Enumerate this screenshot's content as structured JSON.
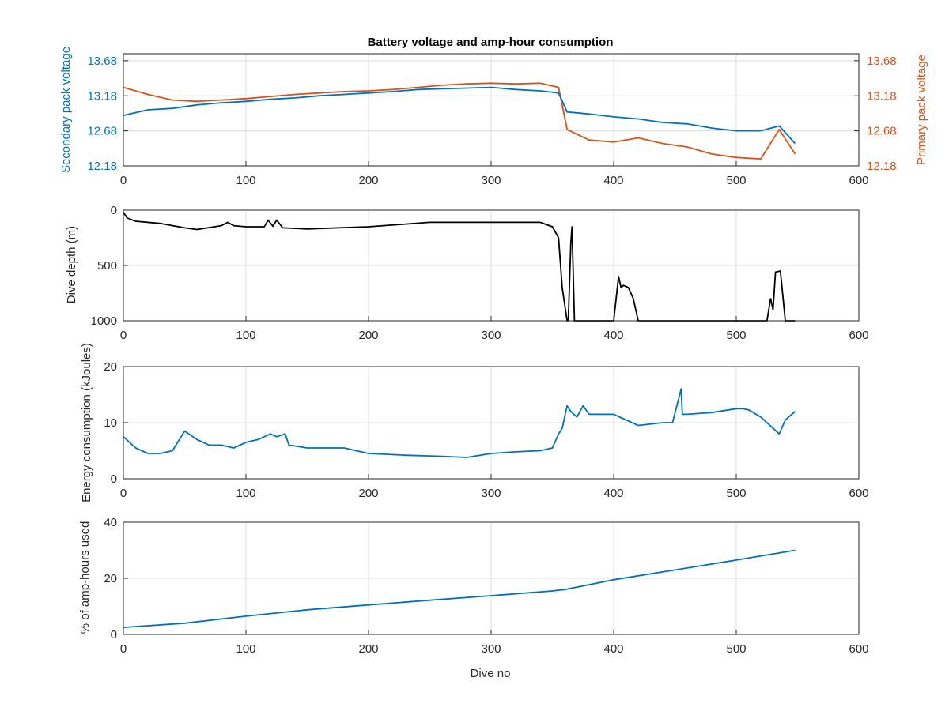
{
  "chart_data": [
    {
      "type": "line",
      "title": "Battery voltage and amp-hour consumption",
      "xlabel": "",
      "ylabel": "Secondary pack voltage",
      "y2label": "Primary pack voltage",
      "xlim": [
        0,
        600
      ],
      "ylim": [
        12.18,
        13.78
      ],
      "y2lim": [
        12.18,
        13.78
      ],
      "xticks": [
        "0",
        "100",
        "200",
        "300",
        "400",
        "500",
        "600"
      ],
      "yticks": [
        "12.18",
        "12.68",
        "13.18",
        "13.68"
      ],
      "y2ticks": [
        "12.18",
        "12.68",
        "13.18",
        "13.68"
      ],
      "grid": true,
      "colors": {
        "left_axis": "#0072BD",
        "right_axis": "#D95319"
      },
      "series": [
        {
          "axis": "left",
          "color": "#0072BD",
          "x": [
            0,
            20,
            40,
            60,
            80,
            100,
            120,
            140,
            160,
            180,
            200,
            220,
            240,
            260,
            280,
            300,
            320,
            340,
            355,
            362,
            380,
            400,
            420,
            440,
            460,
            480,
            500,
            520,
            535,
            548
          ],
          "y": [
            12.9,
            12.98,
            13.0,
            13.05,
            13.08,
            13.1,
            13.13,
            13.15,
            13.18,
            13.2,
            13.22,
            13.24,
            13.27,
            13.28,
            13.29,
            13.3,
            13.27,
            13.25,
            13.22,
            12.95,
            12.92,
            12.88,
            12.85,
            12.8,
            12.78,
            12.72,
            12.68,
            12.68,
            12.75,
            12.5
          ]
        },
        {
          "axis": "right",
          "color": "#D95319",
          "x": [
            0,
            20,
            40,
            60,
            80,
            100,
            120,
            140,
            160,
            180,
            200,
            220,
            240,
            260,
            280,
            300,
            320,
            340,
            355,
            362,
            380,
            400,
            420,
            440,
            460,
            480,
            500,
            520,
            535,
            548
          ],
          "y": [
            13.3,
            13.2,
            13.12,
            13.1,
            13.12,
            13.14,
            13.17,
            13.2,
            13.22,
            13.24,
            13.25,
            13.27,
            13.3,
            13.33,
            13.35,
            13.36,
            13.35,
            13.36,
            13.3,
            12.7,
            12.55,
            12.52,
            12.58,
            12.5,
            12.45,
            12.35,
            12.3,
            12.28,
            12.7,
            12.35
          ]
        }
      ]
    },
    {
      "type": "line",
      "title": "",
      "xlabel": "",
      "ylabel": "Dive depth (m)",
      "xlim": [
        0,
        600
      ],
      "ylim": [
        1000,
        0
      ],
      "xticks": [
        "0",
        "100",
        "200",
        "300",
        "400",
        "500",
        "600"
      ],
      "yticks": [
        "0",
        "500",
        "1000"
      ],
      "grid": true,
      "series": [
        {
          "color": "#000000",
          "x": [
            0,
            3,
            10,
            30,
            50,
            60,
            80,
            85,
            90,
            100,
            115,
            118,
            122,
            125,
            130,
            150,
            200,
            250,
            300,
            340,
            350,
            355,
            358,
            362,
            363,
            365,
            366,
            368,
            370,
            372,
            380,
            400,
            404,
            406,
            408,
            412,
            416,
            420,
            450,
            500,
            525,
            528,
            530,
            532,
            536,
            540,
            548
          ],
          "y": [
            20,
            70,
            100,
            120,
            160,
            175,
            140,
            110,
            140,
            150,
            150,
            90,
            145,
            90,
            160,
            170,
            150,
            110,
            110,
            110,
            150,
            250,
            700,
            1000,
            1000,
            300,
            150,
            1000,
            1000,
            1000,
            1000,
            1000,
            600,
            700,
            680,
            700,
            800,
            1000,
            1000,
            1000,
            1000,
            800,
            900,
            560,
            550,
            1000,
            1000
          ]
        }
      ]
    },
    {
      "type": "line",
      "title": "",
      "xlabel": "",
      "ylabel": "Energy consumption (kJoules)",
      "xlim": [
        0,
        600
      ],
      "ylim": [
        0,
        20
      ],
      "xticks": [
        "0",
        "100",
        "200",
        "300",
        "400",
        "500",
        "600"
      ],
      "yticks": [
        "0",
        "10",
        "20"
      ],
      "grid": true,
      "series": [
        {
          "color": "#0072BD",
          "x": [
            0,
            5,
            10,
            20,
            30,
            40,
            50,
            60,
            70,
            80,
            90,
            100,
            110,
            120,
            125,
            132,
            135,
            150,
            180,
            200,
            230,
            260,
            280,
            300,
            320,
            340,
            350,
            355,
            358,
            362,
            365,
            370,
            375,
            380,
            400,
            420,
            440,
            448,
            455,
            456,
            460,
            480,
            500,
            505,
            510,
            520,
            530,
            535,
            540,
            548
          ],
          "y": [
            7.5,
            6.5,
            5.5,
            4.5,
            4.5,
            5.0,
            8.5,
            7.0,
            6.0,
            6.0,
            5.5,
            6.5,
            7.0,
            8.0,
            7.5,
            8.0,
            6.0,
            5.5,
            5.5,
            4.5,
            4.2,
            4.0,
            3.8,
            4.5,
            4.8,
            5.0,
            5.5,
            8.0,
            9.0,
            13.0,
            12.0,
            11.0,
            13.0,
            11.5,
            11.5,
            9.5,
            10.0,
            10.0,
            16.0,
            11.5,
            11.5,
            11.8,
            12.5,
            12.5,
            12.3,
            11.0,
            9.0,
            8.0,
            10.5,
            12.0
          ]
        }
      ]
    },
    {
      "type": "line",
      "title": "",
      "xlabel": "Dive no",
      "ylabel": "% of amp-hours used",
      "xlim": [
        0,
        600
      ],
      "ylim": [
        0,
        40
      ],
      "xticks": [
        "0",
        "100",
        "200",
        "300",
        "400",
        "500",
        "600"
      ],
      "yticks": [
        "0",
        "20",
        "40"
      ],
      "grid": true,
      "series": [
        {
          "color": "#0072BD",
          "x": [
            0,
            50,
            100,
            150,
            200,
            250,
            300,
            350,
            360,
            400,
            450,
            500,
            548
          ],
          "y": [
            2.5,
            4.0,
            6.5,
            8.8,
            10.5,
            12.2,
            13.8,
            15.5,
            16.0,
            19.5,
            23.0,
            26.5,
            30.0
          ]
        }
      ]
    }
  ]
}
